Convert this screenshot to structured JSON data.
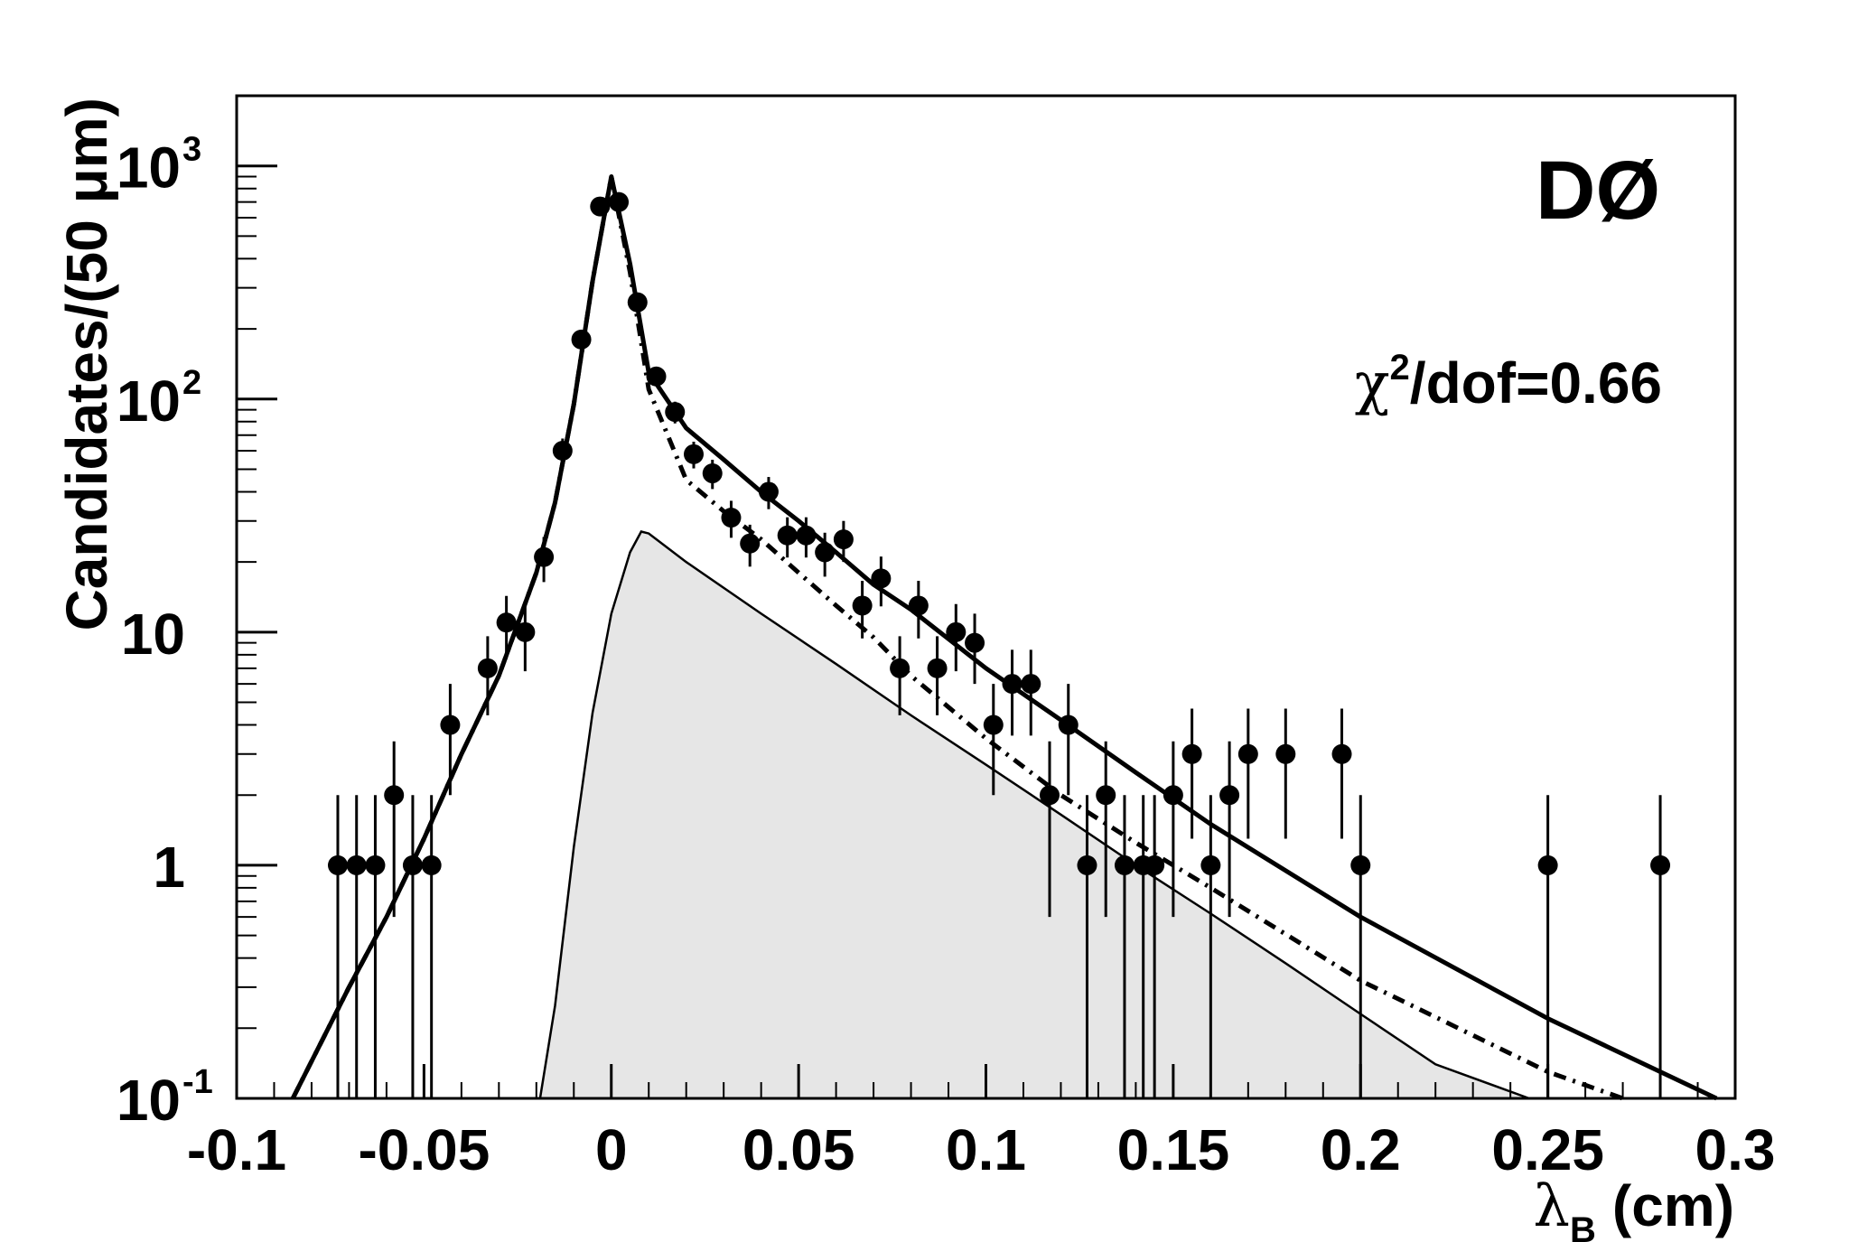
{
  "chart_data": {
    "type": "scatter",
    "title": "",
    "xlabel": "λ_B (cm)",
    "xlabel_main": "λ",
    "xlabel_sub": "B",
    "xlabel_unit": "(cm)",
    "ylabel": "Candidates/(50 μm)",
    "xlim": [
      -0.1,
      0.3
    ],
    "ylim": [
      0.1,
      2000
    ],
    "yscale": "log",
    "grid": false,
    "x_ticks": [
      -0.1,
      -0.05,
      0,
      0.05,
      0.1,
      0.15,
      0.2,
      0.25,
      0.3
    ],
    "x_tick_labels": [
      "-0.1",
      "-0.05",
      "0",
      "0.05",
      "0.1",
      "0.15",
      "0.2",
      "0.25",
      "0.3"
    ],
    "y_ticks": [
      {
        "value": 0.1,
        "base": "10",
        "exp": "-1"
      },
      {
        "value": 1,
        "base": "1",
        "exp": ""
      },
      {
        "value": 10,
        "base": "10",
        "exp": ""
      },
      {
        "value": 100,
        "base": "10",
        "exp": "2"
      },
      {
        "value": 1000,
        "base": "10",
        "exp": "3"
      }
    ],
    "annotations": {
      "experiment": "DØ",
      "chi2_symbol": "χ",
      "chi2_exp": "2",
      "chi2_rest": "/dof=0.66"
    },
    "colors": {
      "axes": "#000000",
      "points": "#000000",
      "signal_fill": "#e6e6e6"
    },
    "data_points": {
      "x": [
        -0.073,
        -0.068,
        -0.063,
        -0.058,
        -0.053,
        -0.048,
        -0.043,
        -0.033,
        -0.028,
        -0.023,
        -0.018,
        -0.013,
        -0.008,
        -0.003,
        0.002,
        0.007,
        0.012,
        0.017,
        0.022,
        0.027,
        0.032,
        0.037,
        0.042,
        0.047,
        0.052,
        0.057,
        0.062,
        0.067,
        0.072,
        0.077,
        0.082,
        0.087,
        0.092,
        0.097,
        0.102,
        0.107,
        0.112,
        0.117,
        0.122,
        0.127,
        0.132,
        0.137,
        0.142,
        0.145,
        0.15,
        0.155,
        0.16,
        0.165,
        0.17,
        0.18,
        0.195,
        0.2,
        0.25,
        0.28
      ],
      "y": [
        1,
        1,
        1,
        2,
        1,
        1,
        4,
        7,
        11,
        10,
        21,
        60,
        180,
        670,
        700,
        260,
        125,
        88,
        58,
        48,
        31,
        24,
        40,
        26,
        26,
        22,
        25,
        13,
        17,
        7,
        13,
        7,
        10,
        9,
        4,
        6,
        6,
        2,
        4,
        1,
        2,
        1,
        1,
        1,
        2,
        3,
        1,
        2,
        3,
        3,
        3,
        1,
        1,
        1
      ],
      "err_low": [
        1,
        1,
        1,
        1.4,
        1,
        1,
        2,
        2.6,
        3.3,
        3.2,
        4.6,
        7.7,
        13.4,
        25.9,
        26.5,
        16.1,
        11.2,
        9.4,
        7.6,
        6.9,
        5.6,
        4.9,
        6.3,
        5.1,
        5.1,
        4.7,
        5,
        3.6,
        4.1,
        2.6,
        3.6,
        2.6,
        3.2,
        3,
        2,
        2.4,
        2.4,
        1.4,
        2,
        1,
        1.4,
        1,
        1,
        1,
        1.4,
        1.7,
        1,
        1.4,
        1.7,
        1.7,
        1.7,
        1,
        1,
        1
      ],
      "err_high": [
        1,
        1,
        1,
        1.4,
        1,
        1,
        2,
        2.6,
        3.3,
        3.2,
        4.6,
        7.7,
        13.4,
        25.9,
        26.5,
        16.1,
        11.2,
        9.4,
        7.6,
        6.9,
        5.6,
        4.9,
        6.3,
        5.1,
        5.1,
        4.7,
        5,
        3.6,
        4.1,
        2.6,
        3.6,
        2.6,
        3.2,
        3,
        2,
        2.4,
        2.4,
        1.4,
        2,
        1,
        1.4,
        1,
        1,
        1,
        1.4,
        1.7,
        1,
        1.4,
        1.7,
        1.7,
        1.7,
        1,
        1,
        1
      ]
    },
    "curves": {
      "total_fit": {
        "style": "solid-thick",
        "x": [
          -0.085,
          -0.07,
          -0.06,
          -0.05,
          -0.04,
          -0.03,
          -0.02,
          -0.015,
          -0.01,
          -0.005,
          0,
          0.005,
          0.01,
          0.02,
          0.03,
          0.04,
          0.05,
          0.06,
          0.07,
          0.08,
          0.1,
          0.12,
          0.14,
          0.16,
          0.2,
          0.25,
          0.295
        ],
        "y": [
          0.1,
          0.3,
          0.6,
          1.3,
          3,
          6.5,
          18,
          36,
          95,
          320,
          900,
          380,
          130,
          75,
          55,
          40,
          30,
          22,
          16,
          12.5,
          7,
          4.2,
          2.5,
          1.5,
          0.6,
          0.22,
          0.1
        ]
      },
      "background": {
        "style": "dash-dot",
        "x": [
          -0.085,
          -0.07,
          -0.06,
          -0.05,
          -0.04,
          -0.03,
          -0.02,
          -0.015,
          -0.01,
          -0.005,
          0,
          0.005,
          0.01,
          0.02,
          0.03,
          0.04,
          0.05,
          0.06,
          0.07,
          0.08,
          0.1,
          0.12,
          0.14,
          0.16,
          0.2,
          0.25,
          0.27
        ],
        "y": [
          0.1,
          0.3,
          0.6,
          1.3,
          3,
          6.5,
          18,
          36,
          95,
          320,
          900,
          350,
          110,
          45,
          33,
          25,
          18,
          13,
          9.5,
          6.5,
          3.5,
          2,
          1.25,
          0.8,
          0.32,
          0.13,
          0.1
        ]
      },
      "signal": {
        "style": "solid-thin-filled",
        "x": [
          -0.019,
          -0.015,
          -0.01,
          -0.005,
          0,
          0.005,
          0.008,
          0.01,
          0.02,
          0.04,
          0.06,
          0.08,
          0.1,
          0.12,
          0.14,
          0.16,
          0.18,
          0.2,
          0.22,
          0.245
        ],
        "y": [
          0.1,
          0.25,
          1.2,
          4.5,
          12,
          22,
          27,
          26.5,
          20,
          12,
          7.3,
          4.4,
          2.7,
          1.65,
          1,
          0.62,
          0.38,
          0.23,
          0.14,
          0.1
        ]
      }
    }
  }
}
